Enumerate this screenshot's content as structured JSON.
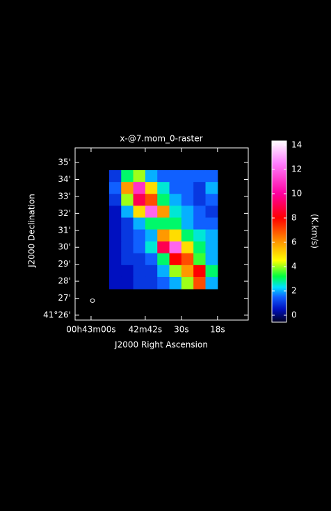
{
  "chart_data": {
    "type": "heatmap",
    "title": "x-@7.mom_0-raster",
    "xlabel": "J2000 Right Ascension",
    "ylabel": "J2000 Declination",
    "xlim": [
      65.3,
      7.8
    ],
    "xticks": [
      {
        "value": 60,
        "label": "00h43m00s"
      },
      {
        "value": 42,
        "label": "42m42s"
      },
      {
        "value": 30,
        "label": "30s"
      },
      {
        "value": 18,
        "label": "18s"
      }
    ],
    "ylim": [
      41.4285,
      41.5977
    ],
    "yticks": [
      {
        "value": 41.43333,
        "label": "41°26'"
      },
      {
        "value": 41.45,
        "label": "27'"
      },
      {
        "value": 41.46667,
        "label": "28'"
      },
      {
        "value": 41.48333,
        "label": "29'"
      },
      {
        "value": 41.5,
        "label": "30'"
      },
      {
        "value": 41.51667,
        "label": "31'"
      },
      {
        "value": 41.53333,
        "label": "32'"
      },
      {
        "value": 41.55,
        "label": "33'"
      },
      {
        "value": 41.56667,
        "label": "34'"
      },
      {
        "value": 41.58333,
        "label": "35'"
      }
    ],
    "x": [
      52,
      48,
      44,
      40,
      36,
      32,
      28,
      24,
      20
    ],
    "y": [
      41.57,
      41.55833,
      41.54667,
      41.535,
      41.52333,
      41.51167,
      41.5,
      41.48833,
      41.47667,
      41.465
    ],
    "z": [
      [
        1,
        3,
        4,
        2,
        1.5,
        1.5,
        1.5,
        1.5,
        1.5
      ],
      [
        1.5,
        6,
        11,
        5,
        2.5,
        1.5,
        1.5,
        1,
        2
      ],
      [
        1,
        4,
        9,
        7,
        3,
        2,
        1.5,
        1,
        1.5
      ],
      [
        0.5,
        2,
        5,
        12,
        6,
        2.5,
        2,
        1.5,
        1
      ],
      [
        0.5,
        1,
        2,
        3,
        3,
        3,
        2,
        1.5,
        1.5
      ],
      [
        0.5,
        1,
        1.5,
        2,
        6,
        5,
        3,
        2.5,
        2
      ],
      [
        0.5,
        1,
        1.5,
        2.5,
        9,
        12,
        5,
        3,
        2
      ],
      [
        0.5,
        1,
        1,
        1.5,
        3,
        8,
        7,
        3.5,
        2
      ],
      [
        0.5,
        0.5,
        1,
        1,
        2,
        4,
        6,
        8,
        3
      ],
      [
        0.5,
        0.5,
        1,
        1,
        1.5,
        2,
        4,
        7,
        2
      ]
    ],
    "colorbar_label": "(K.km/s)",
    "colorbar_lim": [
      -0.57,
      14.34
    ],
    "colorbar_ticks": [
      0,
      2,
      4,
      6,
      8,
      10,
      12,
      14
    ],
    "colorscale": [
      {
        "value": -0.57,
        "color": "#000020"
      },
      {
        "value": 0.5,
        "color": "#0010c0"
      },
      {
        "value": 1.5,
        "color": "#1060ff"
      },
      {
        "value": 2.3,
        "color": "#00e0ff"
      },
      {
        "value": 3.2,
        "color": "#00ff40"
      },
      {
        "value": 4.5,
        "color": "#ffff00"
      },
      {
        "value": 6,
        "color": "#ff9900"
      },
      {
        "value": 8,
        "color": "#ff0000"
      },
      {
        "value": 10,
        "color": "#ff00a0"
      },
      {
        "value": 12.5,
        "color": "#ff80ff"
      },
      {
        "value": 14.34,
        "color": "#ffffff"
      }
    ]
  }
}
